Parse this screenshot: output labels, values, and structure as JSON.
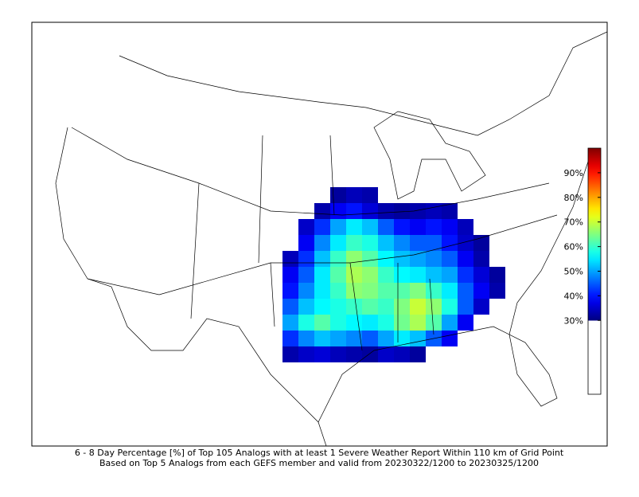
{
  "map": {
    "caption": [
      "6 - 8 Day Percentage [%] of Top 105 Analogs with at least 1 Severe Weather Report Within 110 km of Grid Point",
      "Based on Top 5 Analogs from each GEFS member and valid from 20230322/1200 to 20230325/1200"
    ],
    "colorbar": {
      "lim": [
        0,
        100
      ],
      "ticks": [
        {
          "value": 30,
          "label": "30%"
        },
        {
          "value": 40,
          "label": "40%"
        },
        {
          "value": 50,
          "label": "50%"
        },
        {
          "value": 60,
          "label": "60%"
        },
        {
          "value": 70,
          "label": "70%"
        },
        {
          "value": 80,
          "label": "80%"
        },
        {
          "value": 90,
          "label": "90%"
        }
      ]
    },
    "grid": {
      "values": [
        [
          null,
          null,
          null,
          32,
          34,
          33,
          null,
          null,
          null,
          null,
          null,
          null,
          null,
          null
        ],
        [
          null,
          null,
          33,
          38,
          40,
          36,
          33,
          32,
          33,
          34,
          33,
          null,
          null,
          null
        ],
        [
          null,
          35,
          42,
          50,
          55,
          52,
          45,
          40,
          38,
          40,
          38,
          34,
          null,
          null
        ],
        [
          null,
          38,
          48,
          55,
          60,
          58,
          52,
          48,
          45,
          45,
          40,
          35,
          32,
          null
        ],
        [
          34,
          42,
          52,
          60,
          66,
          62,
          56,
          52,
          50,
          48,
          45,
          38,
          33,
          null
        ],
        [
          38,
          45,
          55,
          62,
          68,
          66,
          60,
          56,
          55,
          52,
          50,
          42,
          36,
          32
        ],
        [
          40,
          48,
          55,
          60,
          66,
          65,
          62,
          62,
          65,
          60,
          55,
          45,
          38,
          33
        ],
        [
          45,
          52,
          56,
          58,
          60,
          62,
          60,
          65,
          70,
          66,
          58,
          45,
          35,
          null
        ],
        [
          50,
          58,
          62,
          58,
          56,
          55,
          58,
          64,
          68,
          62,
          50,
          38,
          null,
          null
        ],
        [
          42,
          48,
          52,
          50,
          48,
          45,
          50,
          55,
          52,
          45,
          38,
          null,
          null,
          null
        ],
        [
          33,
          35,
          36,
          34,
          33,
          32,
          35,
          34,
          32,
          null,
          null,
          null,
          null,
          null
        ]
      ]
    }
  }
}
